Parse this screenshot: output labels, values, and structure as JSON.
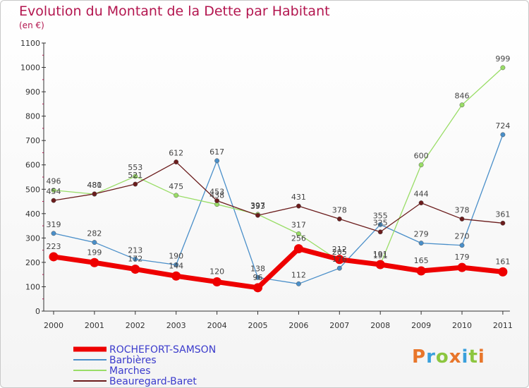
{
  "title": "Evolution du Montant de la Dette par Habitant",
  "unit": "(en €)",
  "logo": {
    "text": "Proxiti",
    "colors": [
      "#e8762b",
      "#3aa0dc",
      "#8cc63f",
      "#e8762b",
      "#3aa0dc",
      "#8cc63f",
      "#e8762b"
    ]
  },
  "chart_data": {
    "type": "line",
    "title": "Evolution du Montant de la Dette par Habitant",
    "ylabel": "(en €)",
    "xlabel": "",
    "x": [
      "2000",
      "2001",
      "2002",
      "2003",
      "2004",
      "2005",
      "2006",
      "2007",
      "2008",
      "2009",
      "2010",
      "2011"
    ],
    "ylim": [
      0,
      1100
    ],
    "yticks": [
      "0",
      "100",
      "200",
      "300",
      "400",
      "500",
      "600",
      "700",
      "800",
      "900",
      "1000",
      "1100"
    ],
    "grid": false,
    "legend": "bottom-left",
    "series": [
      {
        "name": "ROCHEFORT-SAMSON",
        "color": "#ee0000",
        "values": [
          223,
          199,
          172,
          144,
          120,
          96,
          256,
          212,
          191,
          165,
          179,
          161
        ],
        "labels": [
          "223",
          "199",
          "172",
          "144",
          "120",
          "96",
          "256",
          "212",
          "191",
          "165",
          "179",
          "161"
        ]
      },
      {
        "name": "Barbières",
        "color": "#4a8fc9",
        "values": [
          319,
          282,
          213,
          190,
          617,
          138,
          112,
          176,
          355,
          279,
          270,
          724
        ],
        "labels": [
          "319",
          "282",
          "213",
          "190",
          "617",
          "138",
          "112",
          "176",
          "355",
          "279",
          "270",
          "724"
        ]
      },
      {
        "name": "Marches",
        "color": "#99dd66",
        "values": [
          496,
          480,
          553,
          475,
          438,
          397,
          317,
          205,
          191,
          600,
          846,
          999
        ],
        "labels": [
          "496",
          "480",
          "553",
          "475",
          "438",
          "397",
          "317",
          "205",
          "191",
          "600",
          "846",
          "999"
        ]
      },
      {
        "name": "Beauregard-Baret",
        "color": "#6b1c1c",
        "values": [
          454,
          481,
          521,
          612,
          453,
          393,
          431,
          378,
          325,
          444,
          378,
          361
        ],
        "labels": [
          "454",
          "481",
          "521",
          "612",
          "453",
          "393",
          "431",
          "378",
          "325",
          "444",
          "378",
          "361"
        ]
      }
    ]
  }
}
